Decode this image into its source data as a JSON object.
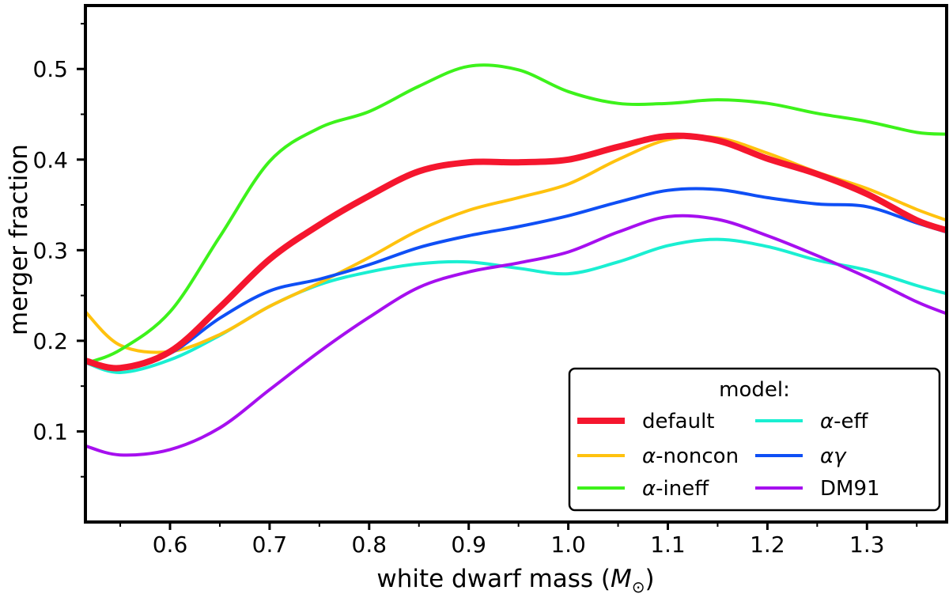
{
  "chart_data": {
    "type": "line",
    "xlabel": "white dwarf mass (",
    "xlabel_symbol": "M",
    "xlabel_sub": "⊙",
    "xlabel_end": ")",
    "ylabel": "merger fraction",
    "xlim": [
      0.515,
      1.38
    ],
    "ylim": [
      0.0,
      0.57
    ],
    "x_ticks": [
      "0.6",
      "0.7",
      "0.8",
      "0.9",
      "1.0",
      "1.1",
      "1.2",
      "1.3"
    ],
    "y_ticks": [
      "0.1",
      "0.2",
      "0.3",
      "0.4",
      "0.5"
    ],
    "legend_title": "model:",
    "legend_position": "lower right",
    "grid": false,
    "series": [
      {
        "name": "default",
        "color": "#f5162e",
        "width": 8,
        "x": [
          0.515,
          0.55,
          0.6,
          0.65,
          0.7,
          0.75,
          0.8,
          0.85,
          0.9,
          0.95,
          1.0,
          1.05,
          1.1,
          1.15,
          1.2,
          1.25,
          1.3,
          1.35,
          1.38
        ],
        "y": [
          0.178,
          0.17,
          0.188,
          0.237,
          0.29,
          0.328,
          0.36,
          0.387,
          0.397,
          0.397,
          0.4,
          0.414,
          0.426,
          0.421,
          0.401,
          0.384,
          0.362,
          0.333,
          0.322
        ]
      },
      {
        "name": "α-noncon",
        "color": "#ffc20e",
        "width": 4,
        "x": [
          0.515,
          0.55,
          0.6,
          0.65,
          0.7,
          0.75,
          0.8,
          0.85,
          0.9,
          0.95,
          1.0,
          1.05,
          1.1,
          1.15,
          1.2,
          1.25,
          1.3,
          1.35,
          1.38
        ],
        "y": [
          0.232,
          0.195,
          0.188,
          0.207,
          0.238,
          0.264,
          0.292,
          0.322,
          0.344,
          0.358,
          0.373,
          0.4,
          0.422,
          0.424,
          0.407,
          0.386,
          0.368,
          0.345,
          0.333
        ]
      },
      {
        "name": "α-ineff",
        "color": "#3df21b",
        "width": 4,
        "x": [
          0.515,
          0.55,
          0.6,
          0.65,
          0.7,
          0.75,
          0.8,
          0.85,
          0.9,
          0.95,
          1.0,
          1.05,
          1.1,
          1.15,
          1.2,
          1.25,
          1.3,
          1.35,
          1.38
        ],
        "y": [
          0.175,
          0.19,
          0.232,
          0.315,
          0.398,
          0.435,
          0.453,
          0.481,
          0.503,
          0.499,
          0.475,
          0.462,
          0.462,
          0.466,
          0.462,
          0.451,
          0.442,
          0.43,
          0.428
        ]
      },
      {
        "name": "α-eff",
        "color": "#1aefd2",
        "width": 4,
        "x": [
          0.515,
          0.55,
          0.6,
          0.65,
          0.7,
          0.75,
          0.8,
          0.85,
          0.9,
          0.95,
          1.0,
          1.05,
          1.1,
          1.15,
          1.2,
          1.25,
          1.3,
          1.35,
          1.38
        ],
        "y": [
          0.176,
          0.165,
          0.179,
          0.206,
          0.238,
          0.262,
          0.276,
          0.285,
          0.287,
          0.28,
          0.274,
          0.287,
          0.305,
          0.312,
          0.304,
          0.289,
          0.278,
          0.261,
          0.252
        ]
      },
      {
        "name": "αγ",
        "color": "#0f4ff5",
        "width": 4,
        "x": [
          0.515,
          0.55,
          0.6,
          0.65,
          0.7,
          0.75,
          0.8,
          0.85,
          0.9,
          0.95,
          1.0,
          1.05,
          1.1,
          1.15,
          1.2,
          1.25,
          1.3,
          1.35,
          1.38
        ],
        "y": [
          0.176,
          0.169,
          0.186,
          0.225,
          0.255,
          0.268,
          0.284,
          0.303,
          0.316,
          0.326,
          0.338,
          0.353,
          0.366,
          0.367,
          0.358,
          0.351,
          0.348,
          0.33,
          0.32
        ]
      },
      {
        "name": "DM91",
        "color": "#a60fef",
        "width": 4,
        "x": [
          0.515,
          0.55,
          0.6,
          0.65,
          0.7,
          0.75,
          0.8,
          0.85,
          0.9,
          0.95,
          1.0,
          1.05,
          1.1,
          1.15,
          1.2,
          1.25,
          1.3,
          1.35,
          1.38
        ],
        "y": [
          0.084,
          0.074,
          0.08,
          0.104,
          0.146,
          0.188,
          0.226,
          0.259,
          0.276,
          0.286,
          0.298,
          0.32,
          0.337,
          0.334,
          0.316,
          0.294,
          0.27,
          0.243,
          0.23
        ]
      }
    ]
  }
}
